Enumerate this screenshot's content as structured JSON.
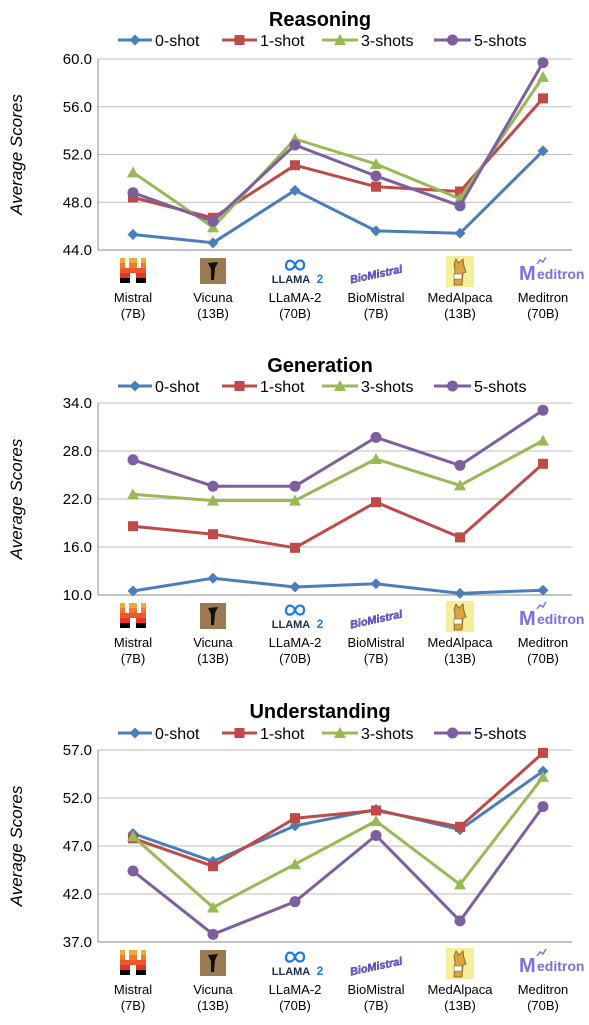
{
  "colors": {
    "0-shot": "#4a7ebb",
    "1-shot": "#be4b48",
    "3-shots": "#98b954",
    "5-shots": "#7d5fa0"
  },
  "models": [
    {
      "name": "Mistral",
      "size": "(7B)",
      "logo": "mistral-logo"
    },
    {
      "name": "Vicuna",
      "size": "(13B)",
      "logo": "vicuna-logo"
    },
    {
      "name": "LLaMA-2",
      "size": "(70B)",
      "logo": "llama2-logo"
    },
    {
      "name": "BioMistral",
      "size": "(7B)",
      "logo": "biomistral-logo"
    },
    {
      "name": "MedAlpaca",
      "size": "(13B)",
      "logo": "medalpaca-logo"
    },
    {
      "name": "Meditron",
      "size": "(70B)",
      "logo": "meditron-logo"
    }
  ],
  "logo_text": {
    "llama": "LLAMA",
    "llama_num": "2",
    "biomistral": "BioMistral",
    "meditron": "editron",
    "meditron_m": "M"
  },
  "chart_data": [
    {
      "type": "line",
      "title": "Reasoning",
      "ylabel": "Average Scores",
      "categories": [
        "Mistral (7B)",
        "Vicuna (13B)",
        "LLaMA-2 (70B)",
        "BioMistral (7B)",
        "MedAlpaca (13B)",
        "Meditron (70B)"
      ],
      "ylim": [
        44.0,
        60.0
      ],
      "yticks": [
        "44.0",
        "48.0",
        "52.0",
        "56.0",
        "60.0"
      ],
      "grid": true,
      "legend": "top",
      "series": [
        {
          "name": "0-shot",
          "marker": "diamond",
          "values": [
            45.3,
            44.6,
            49.0,
            45.6,
            45.4,
            52.3
          ]
        },
        {
          "name": "1-shot",
          "marker": "square",
          "values": [
            48.4,
            46.7,
            51.1,
            49.3,
            48.9,
            56.7
          ]
        },
        {
          "name": "3-shots",
          "marker": "triangle",
          "values": [
            50.5,
            45.9,
            53.3,
            51.2,
            48.3,
            58.5
          ]
        },
        {
          "name": "5-shots",
          "marker": "circle",
          "values": [
            48.8,
            46.4,
            52.8,
            50.2,
            47.7,
            59.7
          ]
        }
      ]
    },
    {
      "type": "line",
      "title": "Generation",
      "ylabel": "Average Scores",
      "categories": [
        "Mistral (7B)",
        "Vicuna (13B)",
        "LLaMA-2 (70B)",
        "BioMistral (7B)",
        "MedAlpaca (13B)",
        "Meditron (70B)"
      ],
      "ylim": [
        10.0,
        34.0
      ],
      "yticks": [
        "10.0",
        "16.0",
        "22.0",
        "28.0",
        "34.0"
      ],
      "grid": true,
      "legend": "top",
      "series": [
        {
          "name": "0-shot",
          "marker": "diamond",
          "values": [
            10.5,
            12.1,
            11.0,
            11.4,
            10.2,
            10.6
          ]
        },
        {
          "name": "1-shot",
          "marker": "square",
          "values": [
            18.6,
            17.6,
            15.9,
            21.6,
            17.2,
            26.4
          ]
        },
        {
          "name": "3-shots",
          "marker": "triangle",
          "values": [
            22.6,
            21.8,
            21.8,
            27.0,
            23.7,
            29.3
          ]
        },
        {
          "name": "5-shots",
          "marker": "circle",
          "values": [
            26.9,
            23.6,
            23.6,
            29.7,
            26.2,
            33.1
          ]
        }
      ]
    },
    {
      "type": "line",
      "title": "Understanding",
      "ylabel": "Average Scores",
      "categories": [
        "Mistral (7B)",
        "Vicuna (13B)",
        "LLaMA-2 (70B)",
        "BioMistral (7B)",
        "MedAlpaca (13B)",
        "Meditron (70B)"
      ],
      "ylim": [
        37.0,
        57.0
      ],
      "yticks": [
        "37.0",
        "42.0",
        "47.0",
        "52.0",
        "57.0"
      ],
      "grid": true,
      "legend": "top",
      "series": [
        {
          "name": "0-shot",
          "marker": "diamond",
          "values": [
            48.3,
            45.4,
            49.1,
            50.8,
            48.7,
            54.8
          ]
        },
        {
          "name": "1-shot",
          "marker": "square",
          "values": [
            47.8,
            44.9,
            49.9,
            50.7,
            49.0,
            56.7
          ]
        },
        {
          "name": "3-shots",
          "marker": "triangle",
          "values": [
            48.0,
            40.6,
            45.1,
            49.6,
            43.0,
            54.2
          ]
        },
        {
          "name": "5-shots",
          "marker": "circle",
          "values": [
            44.4,
            37.8,
            41.2,
            48.1,
            39.2,
            51.1
          ]
        }
      ]
    }
  ]
}
